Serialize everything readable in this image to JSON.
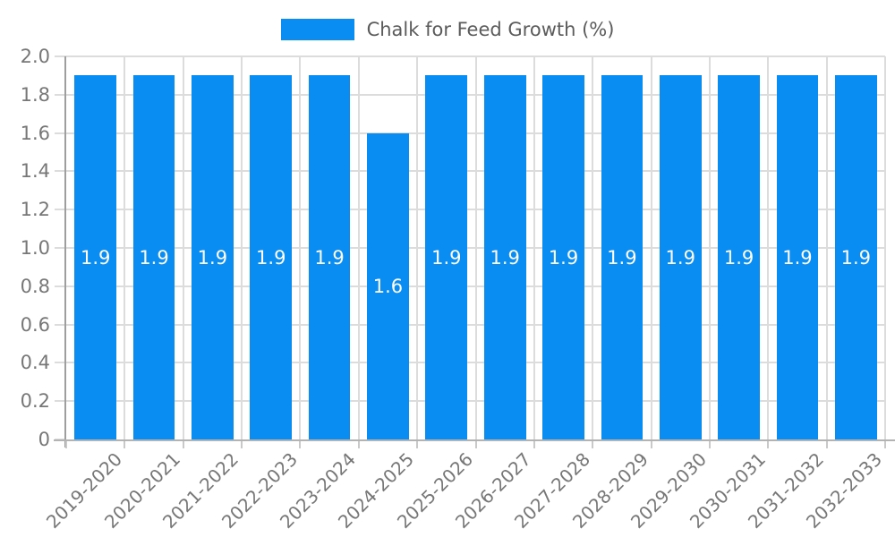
{
  "legend": {
    "label": "Chalk for Feed Growth (%)"
  },
  "chart_data": {
    "type": "bar",
    "title": "Chalk for Feed Growth (%)",
    "xlabel": "",
    "ylabel": "",
    "categories": [
      "2019-2020",
      "2020-2021",
      "2021-2022",
      "2022-2023",
      "2023-2024",
      "2024-2025",
      "2025-2026",
      "2026-2027",
      "2027-2028",
      "2028-2029",
      "2029-2030",
      "2030-2031",
      "2031-2032",
      "2032-2033"
    ],
    "series": [
      {
        "name": "Chalk for Feed Growth (%)",
        "values": [
          1.9,
          1.9,
          1.9,
          1.9,
          1.9,
          1.6,
          1.9,
          1.9,
          1.9,
          1.9,
          1.9,
          1.9,
          1.9,
          1.9
        ]
      }
    ],
    "value_labels": [
      "1.9",
      "1.9",
      "1.9",
      "1.9",
      "1.9",
      "1.6",
      "1.9",
      "1.9",
      "1.9",
      "1.9",
      "1.9",
      "1.9",
      "1.9",
      "1.9"
    ],
    "ylim": [
      0,
      2.0
    ],
    "yticks": [
      {
        "v": 0.0,
        "label": "0"
      },
      {
        "v": 0.2,
        "label": "0.2"
      },
      {
        "v": 0.4,
        "label": "0.4"
      },
      {
        "v": 0.6,
        "label": "0.6"
      },
      {
        "v": 0.8,
        "label": "0.8"
      },
      {
        "v": 1.0,
        "label": "1.0"
      },
      {
        "v": 1.2,
        "label": "1.2"
      },
      {
        "v": 1.4,
        "label": "1.4"
      },
      {
        "v": 1.6,
        "label": "1.6"
      },
      {
        "v": 1.8,
        "label": "1.8"
      },
      {
        "v": 2.0,
        "label": "2.0"
      }
    ],
    "grid": true,
    "legend_position": "top",
    "colors": {
      "bar": "#0a8df3",
      "grid": "#dcdcdc",
      "axis_x": "#b3b3b3",
      "axis_y": "#9e9e9e",
      "tick_mark": "#c9c9c9",
      "tick_text": "#777777",
      "legend_text": "#5b5b5b",
      "value_text": "#ffffff",
      "background": "#ffffff"
    }
  }
}
